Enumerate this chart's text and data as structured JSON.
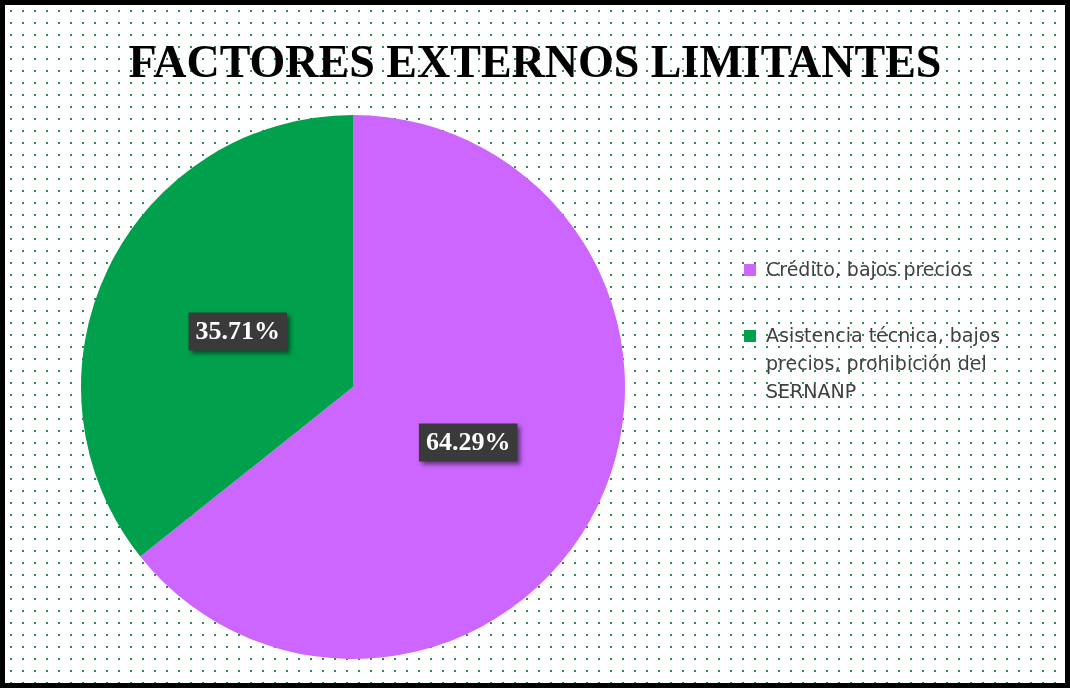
{
  "chart_data": {
    "type": "pie",
    "title": "FACTORES EXTERNOS LIMITANTES",
    "categories": [
      "Crédito, bajos precios",
      "Asistencia técnica, bajos precios, prohibición del SERNANP"
    ],
    "values": [
      64.29,
      35.71
    ],
    "colors": [
      "#cc66ff",
      "#00a04c"
    ],
    "value_labels": [
      "64.29%",
      "35.71%"
    ],
    "legend": "right"
  }
}
